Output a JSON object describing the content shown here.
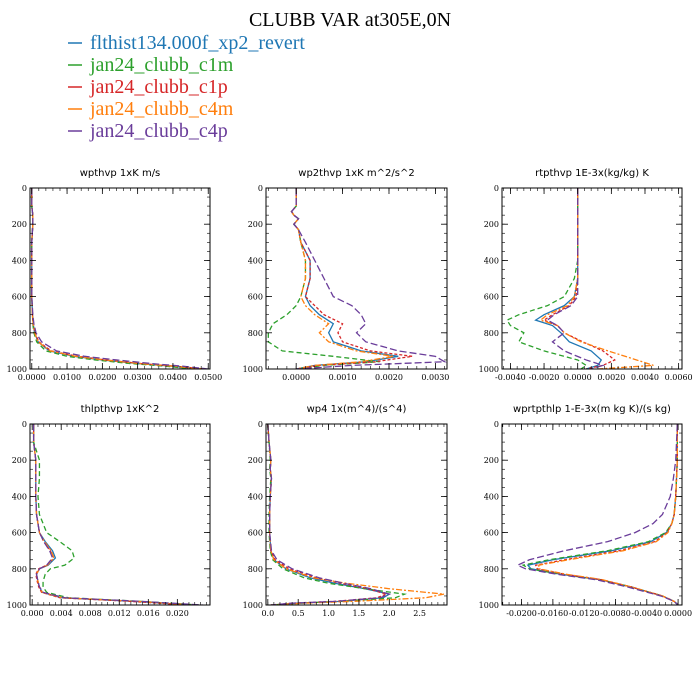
{
  "figure_title": "CLUBB VAR at305E,0N",
  "colors": {
    "flthist134.000f_xp2_revert": "#1f77b4",
    "jan24_clubb_c1m": "#2ca02c",
    "jan24_clubb_c1p": "#d62728",
    "jan24_clubb_c4m": "#ff7f0e",
    "jan24_clubb_c4p": "#6a3d9a"
  },
  "legend": [
    {
      "label": "flthist134.000f_xp2_revert",
      "color": "#1f77b4"
    },
    {
      "label": "jan24_clubb_c1m",
      "color": "#2ca02c"
    },
    {
      "label": "jan24_clubb_c1p",
      "color": "#d62728"
    },
    {
      "label": "jan24_clubb_c4m",
      "color": "#ff7f0e"
    },
    {
      "label": "jan24_clubb_c4p",
      "color": "#6a3d9a"
    }
  ],
  "chart_data": [
    {
      "type": "line",
      "title": "wpthvp   1xK m/s",
      "xlim": [
        -0.0005,
        0.0505
      ],
      "ylim": [
        1000,
        0
      ],
      "xticks": [
        0.0,
        0.01,
        0.02,
        0.03,
        0.04,
        0.05
      ],
      "xtick_labels": [
        "0.0000",
        "0.0100",
        "0.0200",
        "0.0300",
        "0.0400",
        "0.0500"
      ],
      "yticks": [
        0,
        200,
        400,
        600,
        800,
        1000
      ],
      "y": [
        0,
        100,
        150,
        200,
        300,
        400,
        500,
        600,
        700,
        750,
        800,
        850,
        900,
        930,
        950,
        970,
        985,
        1000
      ],
      "series": [
        {
          "name": "flthist134.000f_xp2_revert",
          "values": [
            0,
            0,
            0.0003,
            0.0003,
            0,
            0,
            0,
            0,
            0.0002,
            0.0004,
            0.0008,
            0.0018,
            0.005,
            0.012,
            0.02,
            0.03,
            0.04,
            0.048
          ]
        },
        {
          "name": "jan24_clubb_c1m",
          "values": [
            0,
            0,
            0.0003,
            0.0003,
            0,
            0,
            0,
            0,
            0.0002,
            0.0003,
            0.0006,
            0.0014,
            0.004,
            0.01,
            0.018,
            0.028,
            0.038,
            0.046
          ]
        },
        {
          "name": "jan24_clubb_c1p",
          "values": [
            0,
            0,
            0.0003,
            0.0003,
            0,
            0,
            0,
            0,
            0.0002,
            0.0004,
            0.0009,
            0.002,
            0.0055,
            0.013,
            0.021,
            0.031,
            0.041,
            0.049
          ]
        },
        {
          "name": "jan24_clubb_c4m",
          "values": [
            0,
            0,
            0.0003,
            0.0003,
            0,
            0,
            0,
            0,
            0.0002,
            0.0004,
            0.0008,
            0.0018,
            0.0052,
            0.0125,
            0.0205,
            0.0305,
            0.0405,
            0.0485
          ]
        },
        {
          "name": "jan24_clubb_c4p",
          "values": [
            0,
            0,
            0.0003,
            0.0003,
            0,
            0,
            0,
            0,
            0.0003,
            0.0006,
            0.0012,
            0.0028,
            0.007,
            0.015,
            0.024,
            0.034,
            0.043,
            0.05
          ]
        }
      ]
    },
    {
      "type": "line",
      "title": "wp2thvp   1xK m^2/s^2",
      "xlim": [
        -0.00065,
        0.00325
      ],
      "ylim": [
        1000,
        0
      ],
      "xticks": [
        0.0,
        0.001,
        0.002,
        0.003
      ],
      "xtick_labels": [
        "0.0000",
        "0.0010",
        "0.0020",
        "0.0030"
      ],
      "yticks": [
        0,
        200,
        400,
        600,
        800,
        1000
      ],
      "y": [
        0,
        100,
        130,
        150,
        170,
        200,
        230,
        300,
        400,
        500,
        600,
        650,
        700,
        750,
        800,
        850,
        900,
        930,
        960,
        980,
        1000
      ],
      "series": [
        {
          "name": "flthist134.000f_xp2_revert",
          "values": [
            0,
            0,
            -0.0001,
            -5e-05,
            5e-05,
            -5e-05,
            5e-05,
            0.0001,
            0.0003,
            0.0003,
            0.0002,
            0.0003,
            0.0005,
            0.0008,
            0.0007,
            0.0008,
            0.0014,
            0.0022,
            0.0015,
            0.0004,
            0.0
          ]
        },
        {
          "name": "jan24_clubb_c1m",
          "values": [
            0,
            0,
            -0.0001,
            -5e-05,
            5e-05,
            -5e-05,
            5e-05,
            0.0001,
            0.0002,
            0.0002,
            0.0001,
            0.0,
            -0.0002,
            -0.0005,
            -0.0006,
            -0.0006,
            -0.0003,
            0.0008,
            0.0018,
            0.0006,
            0.0
          ]
        },
        {
          "name": "jan24_clubb_c1p",
          "values": [
            0,
            0,
            -0.0001,
            -5e-05,
            5e-05,
            -5e-05,
            5e-05,
            0.0001,
            0.0003,
            0.0003,
            0.0002,
            0.0004,
            0.0006,
            0.001,
            0.0009,
            0.001,
            0.0016,
            0.0025,
            0.0017,
            0.0005,
            0.0
          ]
        },
        {
          "name": "jan24_clubb_c4m",
          "values": [
            0,
            0,
            -0.0001,
            -5e-05,
            5e-05,
            -5e-05,
            5e-05,
            0.0001,
            0.0002,
            0.0002,
            0.0001,
            0.0002,
            0.0004,
            0.0007,
            0.0005,
            0.0007,
            0.0013,
            0.0021,
            0.0014,
            0.0004,
            0.0
          ]
        },
        {
          "name": "jan24_clubb_c4p",
          "values": [
            0,
            0,
            -0.0001,
            -5e-05,
            5e-05,
            -5e-05,
            5e-05,
            0.0002,
            0.0004,
            0.0006,
            0.0008,
            0.0012,
            0.0014,
            0.0015,
            0.0013,
            0.0015,
            0.0022,
            0.003,
            0.0032,
            0.0012,
            0.0
          ]
        }
      ]
    },
    {
      "type": "line",
      "title": "rtpthvp   1E-3x(kg/kg) K",
      "xlim": [
        -0.0045,
        0.0062
      ],
      "ylim": [
        1000,
        0
      ],
      "xticks": [
        -0.004,
        -0.002,
        0.0,
        0.002,
        0.004,
        0.006
      ],
      "xtick_labels": [
        "-0.0040",
        "-0.0020",
        "0.0000",
        "0.0020",
        "0.0040",
        "0.0060"
      ],
      "yticks": [
        0,
        200,
        400,
        600,
        800,
        1000
      ],
      "y": [
        0,
        200,
        400,
        500,
        600,
        650,
        700,
        730,
        760,
        800,
        850,
        900,
        950,
        980,
        1000
      ],
      "series": [
        {
          "name": "flthist134.000f_xp2_revert",
          "values": [
            0,
            0,
            0,
            0,
            -0.0002,
            -0.0008,
            -0.002,
            -0.0025,
            -0.0015,
            -0.001,
            -0.0005,
            0.0008,
            0.0014,
            0.0012,
            0.0005
          ]
        },
        {
          "name": "jan24_clubb_c1m",
          "values": [
            0,
            0,
            0,
            -0.0002,
            -0.0008,
            -0.0018,
            -0.0035,
            -0.0042,
            -0.004,
            -0.0032,
            -0.0035,
            -0.002,
            0.0,
            0.0005,
            0.0002
          ]
        },
        {
          "name": "jan24_clubb_c1p",
          "values": [
            0,
            0,
            0,
            0,
            -0.0001,
            -0.0005,
            -0.0015,
            -0.002,
            -0.0012,
            -0.0008,
            0.0003,
            0.0015,
            0.0022,
            0.0015,
            0.0005
          ]
        },
        {
          "name": "jan24_clubb_c4m",
          "values": [
            0,
            0,
            0,
            0,
            -0.0002,
            -0.0006,
            -0.0018,
            -0.0022,
            -0.0012,
            -0.0008,
            0.0002,
            0.0018,
            0.0035,
            0.0045,
            0.0012
          ]
        },
        {
          "name": "jan24_clubb_c4p",
          "values": [
            0,
            0,
            0,
            0,
            0,
            -0.0004,
            -0.0014,
            -0.0018,
            -0.0012,
            -0.0008,
            -0.0015,
            -0.0008,
            0.0005,
            0.0015,
            0.0008
          ]
        }
      ]
    },
    {
      "type": "line",
      "title": "thlpthvp   1xK^2",
      "xlim": [
        -0.0003,
        0.0245
      ],
      "ylim": [
        1000,
        0
      ],
      "xticks": [
        0.0,
        0.004,
        0.008,
        0.012,
        0.016,
        0.02
      ],
      "xtick_labels": [
        "0.000",
        "0.004",
        "0.008",
        "0.012",
        "0.016",
        "0.020"
      ],
      "yticks": [
        0,
        200,
        400,
        600,
        800,
        1000
      ],
      "y": [
        0,
        100,
        200,
        300,
        400,
        500,
        600,
        650,
        700,
        740,
        780,
        800,
        830,
        870,
        900,
        930,
        960,
        980,
        1000
      ],
      "series": [
        {
          "name": "flthist134.000f_xp2_revert",
          "values": [
            0.0002,
            0.0002,
            0.0005,
            0.0005,
            0.0005,
            0.0006,
            0.001,
            0.0018,
            0.0028,
            0.0032,
            0.0022,
            0.001,
            0.0006,
            0.0008,
            0.001,
            0.0014,
            0.004,
            0.014,
            0.022
          ]
        },
        {
          "name": "jan24_clubb_c1m",
          "values": [
            0.0002,
            0.0002,
            0.001,
            0.001,
            0.0008,
            0.001,
            0.002,
            0.0038,
            0.0055,
            0.0058,
            0.0045,
            0.0025,
            0.0018,
            0.0015,
            0.0015,
            0.002,
            0.005,
            0.015,
            0.023
          ]
        },
        {
          "name": "jan24_clubb_c1p",
          "values": [
            0.0002,
            0.0002,
            0.0005,
            0.0005,
            0.0005,
            0.0006,
            0.001,
            0.0016,
            0.0025,
            0.003,
            0.002,
            0.0009,
            0.0005,
            0.0007,
            0.0009,
            0.0013,
            0.0038,
            0.0135,
            0.0215
          ]
        },
        {
          "name": "jan24_clubb_c4m",
          "values": [
            0.0002,
            0.0002,
            0.0005,
            0.0005,
            0.0005,
            0.0006,
            0.001,
            0.0017,
            0.0026,
            0.003,
            0.0021,
            0.001,
            0.0006,
            0.0008,
            0.001,
            0.0014,
            0.0042,
            0.0145,
            0.0225
          ]
        },
        {
          "name": "jan24_clubb_c4p",
          "values": [
            0.0002,
            0.0002,
            0.0005,
            0.0005,
            0.0005,
            0.0006,
            0.001,
            0.0016,
            0.0024,
            0.0028,
            0.002,
            0.001,
            0.0006,
            0.0008,
            0.001,
            0.0015,
            0.0045,
            0.015,
            0.0235
          ]
        }
      ]
    },
    {
      "type": "line",
      "title": "wp4   1x(m^4)/(s^4)",
      "xlim": [
        -0.03,
        2.95
      ],
      "ylim": [
        1000,
        0
      ],
      "xticks": [
        0.0,
        0.5,
        1.0,
        1.5,
        2.0,
        2.5
      ],
      "xtick_labels": [
        "0.0",
        "0.5",
        "1.0",
        "1.5",
        "2.0",
        "2.5"
      ],
      "yticks": [
        0,
        200,
        400,
        600,
        800,
        1000
      ],
      "y": [
        0,
        100,
        200,
        250,
        300,
        400,
        500,
        600,
        700,
        750,
        800,
        850,
        880,
        910,
        940,
        960,
        980,
        990,
        1000
      ],
      "series": [
        {
          "name": "flthist134.000f_xp2_revert",
          "values": [
            0,
            0.02,
            0.05,
            0.04,
            0.06,
            0.04,
            0.03,
            0.03,
            0.05,
            0.1,
            0.3,
            0.7,
            1.1,
            1.6,
            2.0,
            1.9,
            1.2,
            0.5,
            0.05
          ]
        },
        {
          "name": "jan24_clubb_c1m",
          "values": [
            0,
            0.02,
            0.04,
            0.03,
            0.05,
            0.03,
            0.02,
            0.02,
            0.04,
            0.08,
            0.25,
            0.6,
            1.0,
            1.6,
            2.25,
            2.1,
            1.2,
            0.5,
            0.05
          ]
        },
        {
          "name": "jan24_clubb_c1p",
          "values": [
            0,
            0.02,
            0.05,
            0.04,
            0.06,
            0.04,
            0.03,
            0.03,
            0.05,
            0.12,
            0.35,
            0.8,
            1.2,
            1.65,
            1.95,
            1.8,
            1.1,
            0.4,
            0.05
          ]
        },
        {
          "name": "jan24_clubb_c4m",
          "values": [
            0,
            0.02,
            0.05,
            0.04,
            0.06,
            0.04,
            0.03,
            0.03,
            0.05,
            0.1,
            0.3,
            0.75,
            1.3,
            2.0,
            2.9,
            2.6,
            1.4,
            0.6,
            0.05
          ]
        },
        {
          "name": "jan24_clubb_c4p",
          "values": [
            0,
            0.02,
            0.05,
            0.04,
            0.06,
            0.04,
            0.03,
            0.03,
            0.06,
            0.15,
            0.4,
            0.85,
            1.25,
            1.7,
            2.0,
            1.85,
            1.1,
            0.4,
            0.05
          ]
        }
      ]
    },
    {
      "type": "line",
      "title": "wprtpthlp   1-E-3x(m kg K)/(s kg)",
      "xlim": [
        -0.0225,
        0.0005
      ],
      "ylim": [
        1000,
        0
      ],
      "xticks": [
        -0.02,
        -0.016,
        -0.012,
        -0.008,
        -0.004,
        0.0
      ],
      "xtick_labels": [
        "-0.0200",
        "-0.0160",
        "-0.0120",
        "-0.0080",
        "-0.0040",
        "0.0000"
      ],
      "yticks": [
        0,
        200,
        400,
        600,
        800,
        1000
      ],
      "y": [
        0,
        100,
        200,
        300,
        400,
        500,
        550,
        600,
        650,
        700,
        750,
        780,
        800,
        830,
        860,
        900,
        950,
        980,
        1000
      ],
      "series": [
        {
          "name": "flthist134.000f_xp2_revert",
          "values": [
            -0.0001,
            -0.0001,
            -0.0001,
            -0.0002,
            -0.0003,
            -0.0005,
            -0.0008,
            -0.0015,
            -0.0035,
            -0.0085,
            -0.016,
            -0.0192,
            -0.0188,
            -0.015,
            -0.01,
            -0.006,
            -0.002,
            -0.0005,
            0.0
          ]
        },
        {
          "name": "jan24_clubb_c1m",
          "values": [
            -0.0001,
            -0.0001,
            -0.0001,
            -0.0002,
            -0.0003,
            -0.0005,
            -0.0008,
            -0.0016,
            -0.0038,
            -0.009,
            -0.0165,
            -0.0198,
            -0.019,
            -0.015,
            -0.01,
            -0.006,
            -0.002,
            -0.0005,
            0.0
          ]
        },
        {
          "name": "jan24_clubb_c1p",
          "values": [
            -0.0001,
            -0.0001,
            -0.0001,
            -0.0002,
            -0.0003,
            -0.0005,
            -0.0008,
            -0.0014,
            -0.003,
            -0.0075,
            -0.0145,
            -0.0182,
            -0.018,
            -0.0145,
            -0.0098,
            -0.006,
            -0.002,
            -0.0005,
            0.0
          ]
        },
        {
          "name": "jan24_clubb_c4m",
          "values": [
            -0.0001,
            -0.0001,
            -0.0001,
            -0.0002,
            -0.0003,
            -0.0005,
            -0.0008,
            -0.0013,
            -0.0028,
            -0.007,
            -0.014,
            -0.0178,
            -0.0178,
            -0.0143,
            -0.0097,
            -0.006,
            -0.002,
            -0.0005,
            0.0
          ]
        },
        {
          "name": "jan24_clubb_c4p",
          "values": [
            -0.0001,
            -0.0002,
            -0.0003,
            -0.0006,
            -0.001,
            -0.002,
            -0.0032,
            -0.0055,
            -0.009,
            -0.0145,
            -0.019,
            -0.0205,
            -0.0195,
            -0.0155,
            -0.0105,
            -0.0065,
            -0.0022,
            -0.0005,
            0.0
          ]
        }
      ]
    }
  ]
}
